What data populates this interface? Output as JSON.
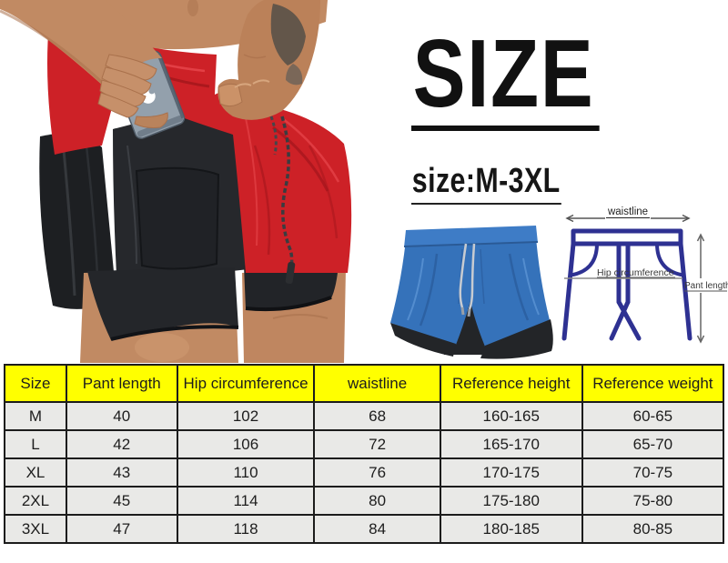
{
  "header": {
    "title": "SIZE",
    "subtitle": "size:M-3XL"
  },
  "diagram": {
    "waistline_label": "waistline",
    "hip_label": "Hip circumference",
    "pant_length_label": "Pant length"
  },
  "size_table": {
    "columns": [
      "Size",
      "Pant length",
      "Hip circumference",
      "waistline",
      "Reference height",
      "Reference weight"
    ],
    "rows": [
      [
        "M",
        "40",
        "102",
        "68",
        "160-165",
        "60-65"
      ],
      [
        "L",
        "42",
        "106",
        "72",
        "165-170",
        "65-70"
      ],
      [
        "XL",
        "43",
        "110",
        "76",
        "170-175",
        "70-75"
      ],
      [
        "2XL",
        "45",
        "114",
        "80",
        "175-180",
        "75-80"
      ],
      [
        "3XL",
        "47",
        "118",
        "84",
        "180-185",
        "80-85"
      ]
    ]
  },
  "colors": {
    "table_header_bg": "#ffff00",
    "table_row_bg": "#e9e9e7",
    "table_border": "#1c1c1c",
    "red_shorts": "#cd2127",
    "blue_shorts": "#3572ba",
    "diagram_line": "#2e3192",
    "heading_text": "#111111"
  }
}
